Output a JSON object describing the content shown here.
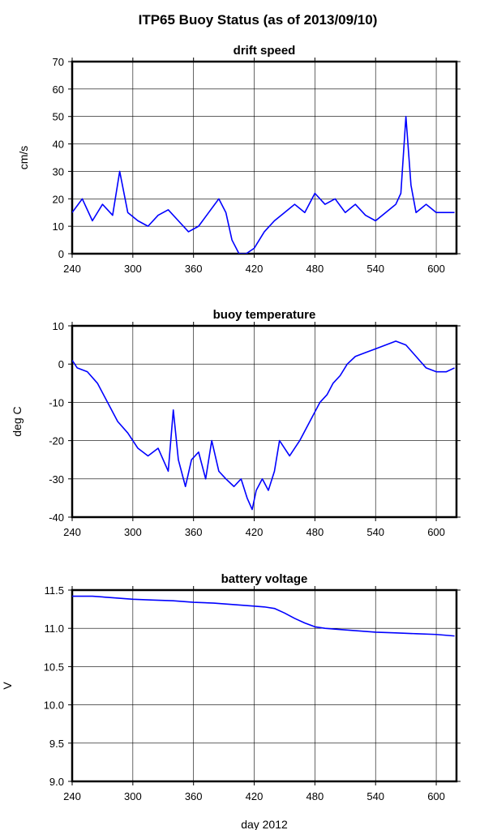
{
  "figure_title": "ITP65 Buoy Status (as of 2013/09/10)",
  "shared_xlabel": "day 2012",
  "line_color": "#0000ff",
  "chart_data": [
    {
      "type": "line",
      "title": "drift speed",
      "ylabel": "cm/s",
      "xlabel": "",
      "xlim": [
        240,
        620
      ],
      "ylim": [
        0,
        70
      ],
      "xticks": [
        240,
        300,
        360,
        420,
        480,
        540,
        600
      ],
      "yticks": [
        0,
        10,
        20,
        30,
        40,
        50,
        60,
        70
      ],
      "grid": true,
      "series": [
        {
          "x": [
            240,
            250,
            260,
            270,
            280,
            287,
            295,
            305,
            315,
            325,
            335,
            345,
            355,
            365,
            375,
            385,
            392,
            398,
            405,
            412,
            420,
            430,
            440,
            450,
            460,
            470,
            480,
            490,
            500,
            510,
            520,
            530,
            540,
            550,
            560,
            565,
            570,
            575,
            580,
            590,
            600,
            610,
            618
          ],
          "y": [
            15,
            20,
            12,
            18,
            14,
            30,
            15,
            12,
            10,
            14,
            16,
            12,
            8,
            10,
            15,
            20,
            15,
            5,
            0,
            0,
            2,
            8,
            12,
            15,
            18,
            15,
            22,
            18,
            20,
            15,
            18,
            14,
            12,
            15,
            18,
            22,
            50,
            25,
            15,
            18,
            15,
            15,
            15
          ]
        }
      ]
    },
    {
      "type": "line",
      "title": "buoy temperature",
      "ylabel": "deg C",
      "xlabel": "",
      "xlim": [
        240,
        620
      ],
      "ylim": [
        -40,
        10
      ],
      "xticks": [
        240,
        300,
        360,
        420,
        480,
        540,
        600
      ],
      "yticks": [
        -40,
        -30,
        -20,
        -10,
        0,
        10
      ],
      "grid": true,
      "series": [
        {
          "x": [
            240,
            245,
            255,
            265,
            275,
            285,
            295,
            305,
            315,
            325,
            335,
            340,
            345,
            352,
            358,
            365,
            372,
            378,
            385,
            392,
            400,
            407,
            413,
            418,
            422,
            428,
            434,
            440,
            445,
            455,
            465,
            475,
            485,
            492,
            498,
            505,
            512,
            520,
            530,
            540,
            550,
            560,
            570,
            580,
            590,
            600,
            610,
            618
          ],
          "y": [
            1,
            -1,
            -2,
            -5,
            -10,
            -15,
            -18,
            -22,
            -24,
            -22,
            -28,
            -12,
            -25,
            -32,
            -25,
            -23,
            -30,
            -20,
            -28,
            -30,
            -32,
            -30,
            -35,
            -38,
            -33,
            -30,
            -33,
            -28,
            -20,
            -24,
            -20,
            -15,
            -10,
            -8,
            -5,
            -3,
            0,
            2,
            3,
            4,
            5,
            6,
            5,
            2,
            -1,
            -2,
            -2,
            -1
          ]
        }
      ]
    },
    {
      "type": "line",
      "title": "battery voltage",
      "ylabel": "V",
      "xlabel": "day 2012",
      "xlim": [
        240,
        620
      ],
      "ylim": [
        9.0,
        11.5
      ],
      "xticks": [
        240,
        300,
        360,
        420,
        480,
        540,
        600
      ],
      "yticks": [
        9.0,
        9.5,
        10.0,
        10.5,
        11.0,
        11.5
      ],
      "grid": true,
      "series": [
        {
          "x": [
            240,
            260,
            280,
            300,
            320,
            340,
            360,
            380,
            400,
            420,
            430,
            440,
            450,
            460,
            470,
            480,
            490,
            500,
            520,
            540,
            560,
            580,
            600,
            618
          ],
          "y": [
            11.42,
            11.42,
            11.4,
            11.38,
            11.37,
            11.36,
            11.34,
            11.33,
            11.31,
            11.29,
            11.28,
            11.26,
            11.2,
            11.13,
            11.07,
            11.02,
            11.0,
            10.99,
            10.97,
            10.95,
            10.94,
            10.93,
            10.92,
            10.9
          ]
        }
      ]
    }
  ]
}
